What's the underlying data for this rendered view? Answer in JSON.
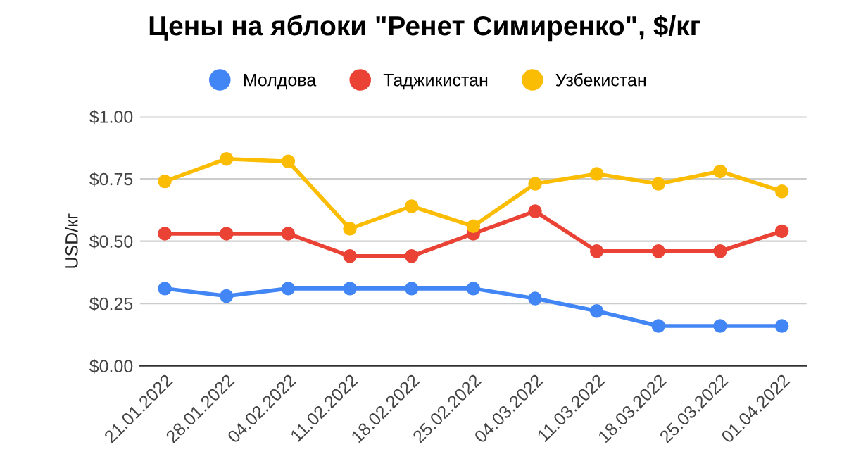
{
  "chart_data": {
    "type": "line",
    "title": "Цены на яблоки \"Ренет Симиренко\", $/кг",
    "ylabel": "USD/кг",
    "categories": [
      "21.01.2022",
      "28.01.2022",
      "04.02.2022",
      "11.02.2022",
      "18.02.2022",
      "25.02.2022",
      "04.03.2022",
      "11.03.2022",
      "18.03.2022",
      "25.03.2022",
      "01.04.2022"
    ],
    "series": [
      {
        "name": "Молдова",
        "color": "#4285f4",
        "values": [
          0.31,
          0.28,
          0.31,
          0.31,
          0.31,
          0.31,
          0.27,
          0.22,
          0.16,
          0.16,
          0.16
        ]
      },
      {
        "name": "Таджикистан",
        "color": "#ea4335",
        "values": [
          0.53,
          0.53,
          0.53,
          0.44,
          0.44,
          0.53,
          0.62,
          0.46,
          0.46,
          0.46,
          0.54
        ]
      },
      {
        "name": "Узбекистан",
        "color": "#fbbc04",
        "values": [
          0.74,
          0.83,
          0.82,
          0.55,
          0.64,
          0.56,
          0.73,
          0.77,
          0.73,
          0.78,
          0.7
        ]
      }
    ],
    "ylim": [
      0,
      1
    ],
    "yticks": [
      {
        "value": 0,
        "label": "$0.00"
      },
      {
        "value": 0.25,
        "label": "$0.25"
      },
      {
        "value": 0.5,
        "label": "$0.50"
      },
      {
        "value": 0.75,
        "label": "$0.75"
      },
      {
        "value": 1,
        "label": "$1.00"
      }
    ],
    "grid": "y",
    "legend": "top",
    "marker": "circle",
    "line_style": "solid"
  }
}
